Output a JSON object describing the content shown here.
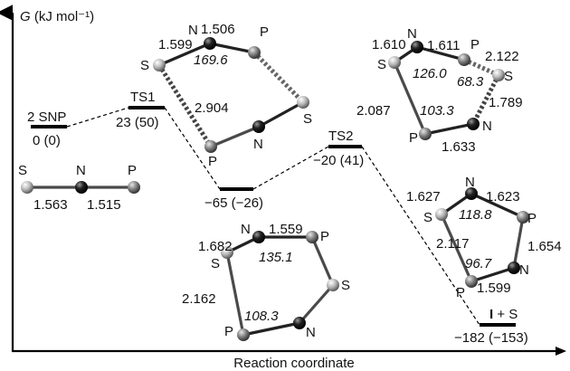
{
  "axes": {
    "y_label_var": "G",
    "y_label_unit": " (kJ mol⁻¹)",
    "x_label": "Reaction coordinate"
  },
  "levels": {
    "snp": {
      "name": "2 SNP",
      "energy": "0 (0)"
    },
    "ts1": {
      "name": "TS1",
      "energy": "23 (50)"
    },
    "int1": {
      "energy": "−65 (−26)"
    },
    "ts2": {
      "name": "TS2",
      "energy": "−20 (41)"
    },
    "prod": {
      "name_bold": "I",
      "name_rest": " + S",
      "energy": "−182 (−153)"
    }
  },
  "molecules": {
    "snp": {
      "s": "S",
      "n": "N",
      "p": "P",
      "d1": "1.563",
      "d2": "1.515"
    },
    "ts1": {
      "s1": "S",
      "n1": "N",
      "p1": "P",
      "p2": "P",
      "n2": "N",
      "s2": "S",
      "d_sn": "1.599",
      "d_np": "1.506",
      "angle": "169.6",
      "d_long": "2.904"
    },
    "int1": {
      "s1": "S",
      "n1": "N",
      "p1": "P",
      "s2": "S",
      "p2": "P",
      "n2": "N",
      "d_sn": "1.682",
      "d_np": "1.559",
      "angle1": "135.1",
      "d_sp": "2.162",
      "angle2": "108.3"
    },
    "ts2": {
      "s1": "S",
      "n1": "N",
      "p1": "P",
      "s2": "S",
      "n2": "N",
      "p2": "P",
      "d_sn": "1.610",
      "d_np": "1.611",
      "angle1": "126.0",
      "d_ps": "2.122",
      "angle2": "68.3",
      "d_sn2": "1.789",
      "d_sp": "2.087",
      "angle3": "103.3",
      "d_pn": "1.633"
    },
    "prod": {
      "s1": "S",
      "n1": "N",
      "p1": "P",
      "n2": "N",
      "p2": "P",
      "d_sn": "1.627",
      "d_np": "1.623",
      "angle1": "118.8",
      "d_sp": "2.117",
      "d_pn": "1.654",
      "angle2": "96.7",
      "d_pn2": "1.599"
    }
  },
  "atom_colors": {
    "S": "#bdbdbd",
    "N": "#1a1a1a",
    "P": "#7a7a7a"
  }
}
